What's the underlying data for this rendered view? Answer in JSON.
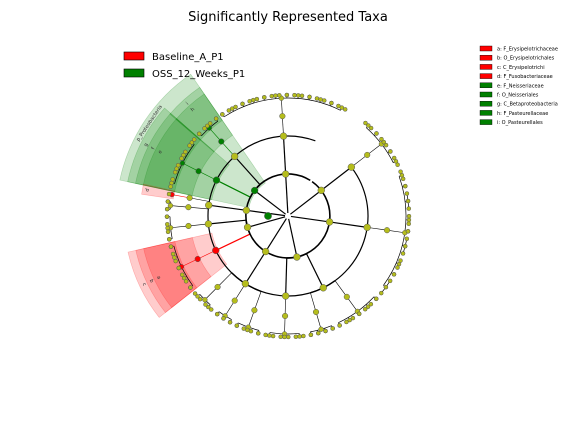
{
  "chart_data": {
    "type": "cladogram",
    "title": "Significantly Represented Taxa",
    "legend": [
      {
        "name": "Baseline_A_P1",
        "color": "#ff0000"
      },
      {
        "name": "OSS_12_Weeks_P1",
        "color": "#008000"
      }
    ],
    "taxa": [
      {
        "key": "a",
        "label": "a: F_Erysipelotrichaceae",
        "group": "Baseline_A_P1",
        "color": "#ff0000"
      },
      {
        "key": "b",
        "label": "b: O_Erysipelotrichales",
        "group": "Baseline_A_P1",
        "color": "#ff0000"
      },
      {
        "key": "c",
        "label": "c: C_Erysipelotrichi",
        "group": "Baseline_A_P1",
        "color": "#ff0000"
      },
      {
        "key": "d",
        "label": "d: F_Fusobacteriaceae",
        "group": "Baseline_A_P1",
        "color": "#ff0000"
      },
      {
        "key": "e",
        "label": "e: F_Neisseriaceae",
        "group": "OSS_12_Weeks_P1",
        "color": "#008000"
      },
      {
        "key": "f",
        "label": "f: O_Neisseriales",
        "group": "OSS_12_Weeks_P1",
        "color": "#008000"
      },
      {
        "key": "g",
        "label": "g: C_Betaproteobacteria",
        "group": "OSS_12_Weeks_P1",
        "color": "#008000"
      },
      {
        "key": "h",
        "label": "h: F_Pasteurellaceae",
        "group": "OSS_12_Weeks_P1",
        "color": "#008000"
      },
      {
        "key": "i",
        "label": "i: O_Pasteurellales",
        "group": "OSS_12_Weeks_P1",
        "color": "#008000"
      }
    ],
    "wedge_labels": [
      "a",
      "b",
      "c",
      "d",
      "e",
      "f",
      "g",
      "h",
      "i",
      "p_Proteobacteria"
    ],
    "colors": {
      "neutral_node": "#b5bd1c",
      "enriched_a": "#ff0000",
      "enriched_b": "#008000"
    }
  }
}
